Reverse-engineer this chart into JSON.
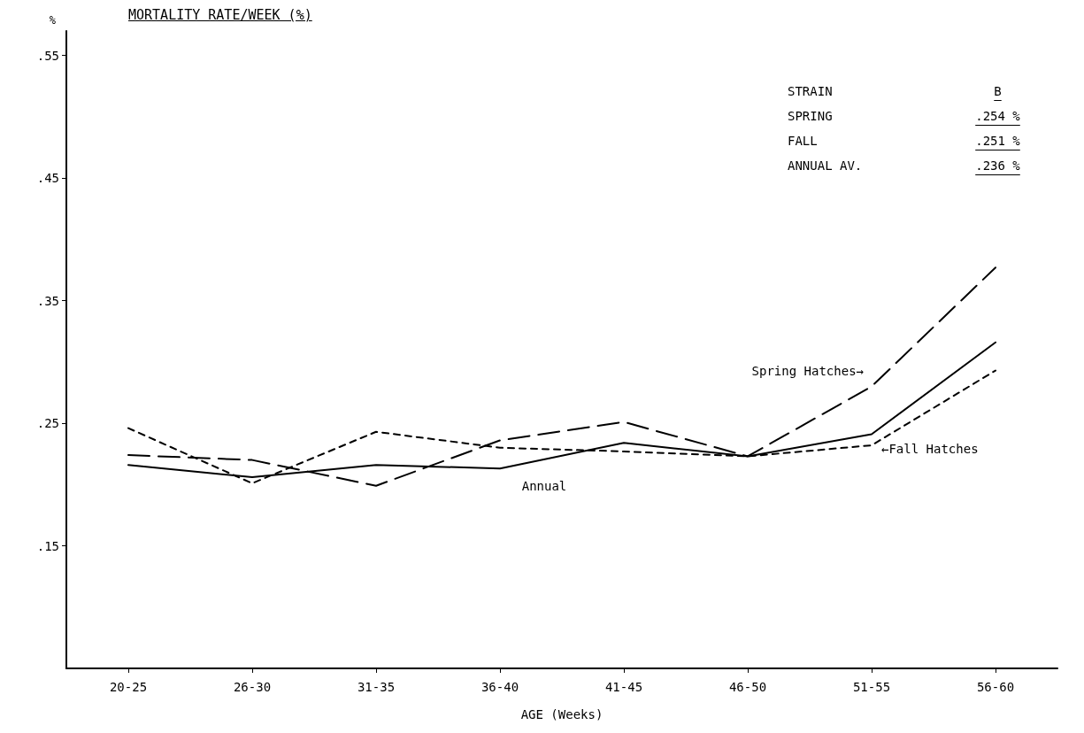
{
  "chart_data": {
    "type": "line",
    "title": "MORTALITY RATE/WEEK (%)",
    "xlabel": "AGE (Weeks)",
    "ylabel": "%",
    "categories": [
      "20-25",
      "26-30",
      "31-35",
      "36-40",
      "41-45",
      "46-50",
      "51-55",
      "56-60"
    ],
    "series": [
      {
        "name": "Spring Hatches→",
        "color": "#000000",
        "line_style": "dashed",
        "values": [
          0.224,
          0.22,
          0.199,
          0.236,
          0.251,
          0.223,
          0.28,
          0.377
        ]
      },
      {
        "name": "←Fall Hatches",
        "color": "#000000",
        "line_style": "dotted",
        "values": [
          0.246,
          0.201,
          0.243,
          0.23,
          0.227,
          0.223,
          0.232,
          0.293
        ]
      },
      {
        "name": "Annual",
        "color": "#000000",
        "line_style": "solid",
        "values": [
          0.216,
          0.206,
          0.216,
          0.213,
          0.234,
          0.223,
          0.241,
          0.316
        ]
      }
    ],
    "ylim": [
      0.05,
      0.57
    ],
    "yticks": [
      {
        "value": 0.15,
        "label": ".15"
      },
      {
        "value": 0.25,
        "label": ".25"
      },
      {
        "value": 0.35,
        "label": ".35"
      },
      {
        "value": 0.45,
        "label": ".45"
      },
      {
        "value": 0.55,
        "label": ".55"
      }
    ],
    "annotations": [
      "STRAIN",
      "B",
      "SPRING",
      ".254 %",
      "FALL",
      ".251 %",
      "ANNUAL AV.",
      ".236 %"
    ],
    "grid": false,
    "legend": false,
    "marker": "none"
  }
}
